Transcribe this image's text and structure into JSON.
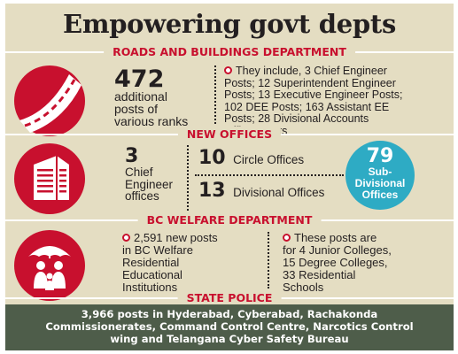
{
  "title": "Empowering govt depts",
  "roads": {
    "header": "ROADS AND BUILDINGS DEPARTMENT",
    "icon": "road-icon",
    "count": "472",
    "count_caption_1": "additional",
    "count_caption_2": "posts of",
    "count_caption_3": "various ranks",
    "detail_lines": [
      "They include, 3 Chief Engineer",
      "Posts; 12 Superintendent Engineer",
      "Posts; 13 Executive Engineer Posts;",
      "102 DEE Posts; 163 Assistant EE",
      "Posts; 28 Divisional Accounts",
      "Officer Posts"
    ]
  },
  "offices": {
    "header": "NEW OFFICES",
    "icon": "office-building-icon",
    "chief_count": "3",
    "chief_caption_1": "Chief",
    "chief_caption_2": "Engineer",
    "chief_caption_3": "offices",
    "circle_count": "10",
    "circle_label": "Circle Offices",
    "divisional_count": "13",
    "divisional_label": "Divisional Offices",
    "subdiv_count": "79",
    "subdiv_label_1": "Sub-",
    "subdiv_label_2": "Divisional",
    "subdiv_label_3": "Offices"
  },
  "bc": {
    "header": "BC WELFARE DEPARTMENT",
    "icon": "family-umbrella-icon",
    "left_lines": [
      "2,591 new posts",
      "in BC Welfare",
      "Residential",
      "Educational",
      "Institutions"
    ],
    "right_lines": [
      "These posts are",
      "for 4 Junior Colleges,",
      "15 Degree Colleges,",
      "33 Residential",
      "Schools"
    ]
  },
  "police": {
    "header": "STATE POLICE",
    "lines": [
      "3,966 posts in Hyderabad, Cyberabad, Rachakonda",
      "Commissionerates, Command Control Centre, Narcotics Control",
      "wing and Telangana Cyber Safety Bureau"
    ]
  },
  "colors": {
    "accent_red": "#c8102e",
    "background": "#e4ddc2",
    "teal": "#2eabc4",
    "police_bg": "#4e5d4a"
  }
}
